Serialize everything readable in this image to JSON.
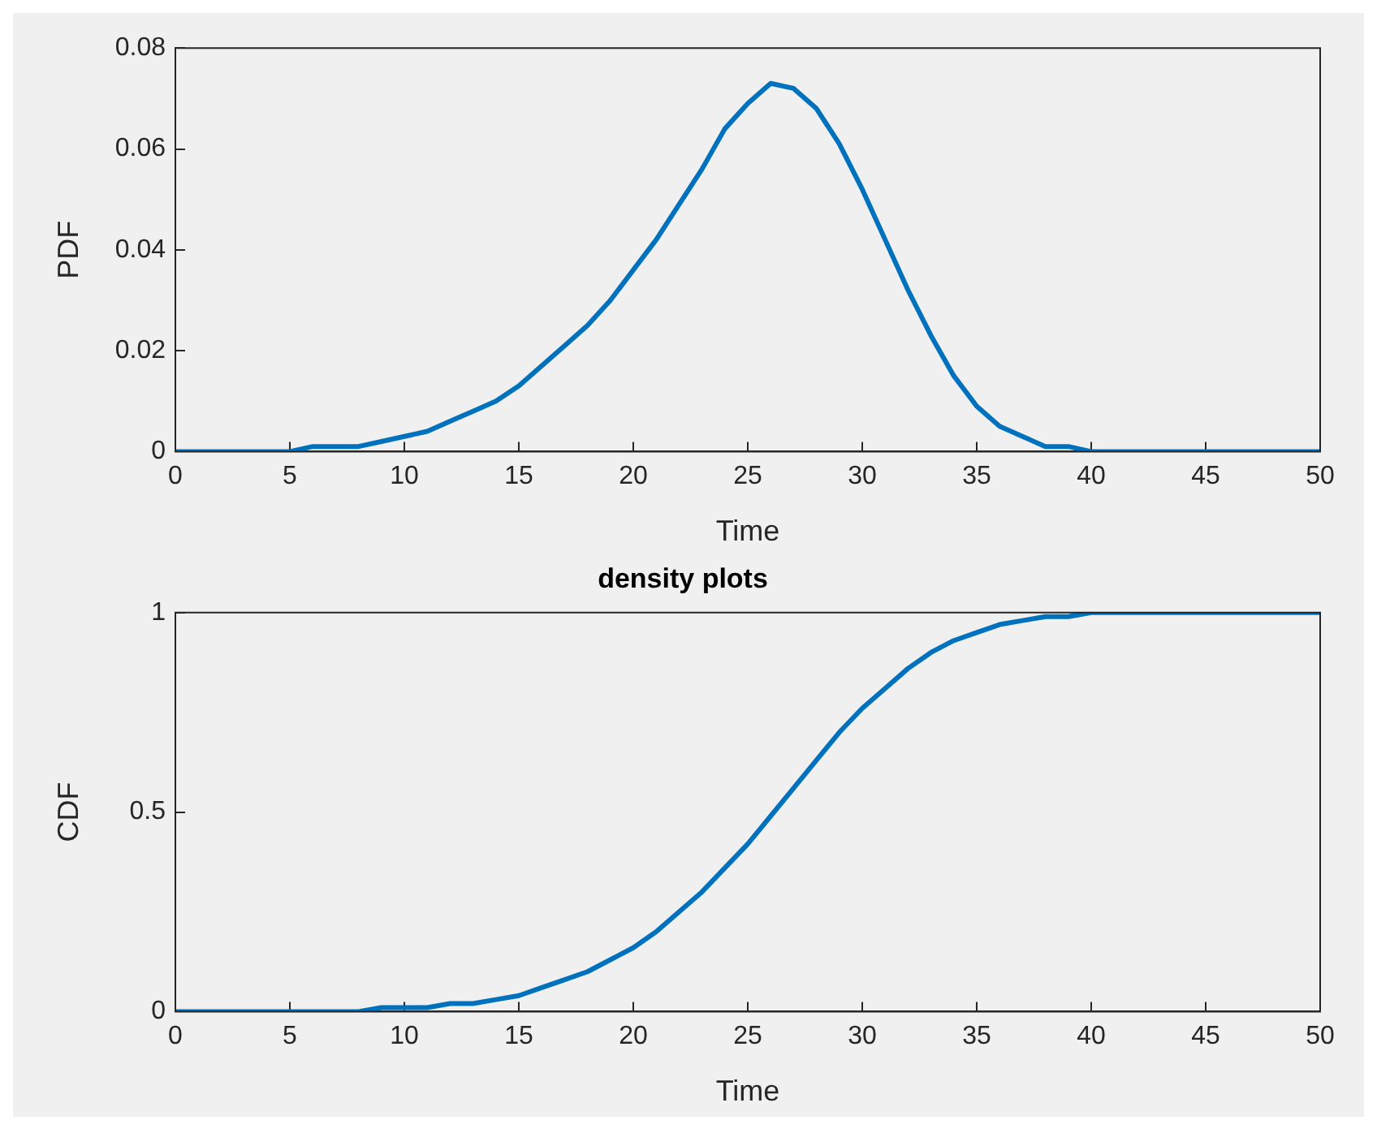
{
  "chart_data": [
    {
      "type": "line",
      "xlabel": "Time",
      "ylabel": "PDF",
      "x": [
        0,
        1,
        2,
        3,
        4,
        5,
        6,
        7,
        8,
        9,
        10,
        11,
        12,
        13,
        14,
        15,
        16,
        17,
        18,
        19,
        20,
        21,
        22,
        23,
        24,
        25,
        26,
        27,
        28,
        29,
        30,
        31,
        32,
        33,
        34,
        35,
        36,
        37,
        38,
        39,
        40,
        41,
        42,
        43,
        44,
        45,
        46,
        47,
        48,
        49,
        50
      ],
      "series": [
        {
          "color": "#0072bd",
          "values": [
            0,
            0,
            0,
            0,
            0,
            0,
            0.001,
            0.001,
            0.001,
            0.002,
            0.003,
            0.004,
            0.006,
            0.008,
            0.01,
            0.013,
            0.017,
            0.021,
            0.025,
            0.03,
            0.036,
            0.042,
            0.049,
            0.056,
            0.064,
            0.069,
            0.073,
            0.072,
            0.068,
            0.061,
            0.052,
            0.042,
            0.032,
            0.023,
            0.015,
            0.009,
            0.005,
            0.003,
            0.001,
            0.001,
            0,
            0,
            0,
            0,
            0,
            0,
            0,
            0,
            0,
            0,
            0
          ]
        }
      ],
      "xlim": [
        0,
        50
      ],
      "xticks": [
        0,
        5,
        10,
        15,
        20,
        25,
        30,
        35,
        40,
        45,
        50
      ],
      "ylim": [
        0,
        0.08
      ],
      "yticks": [
        0,
        0.02,
        0.04,
        0.06,
        0.08
      ],
      "grid": false,
      "legend": false,
      "marker": "none",
      "line_style": "solid"
    },
    {
      "type": "line",
      "title": "density plots",
      "xlabel": "Time",
      "ylabel": "CDF",
      "x": [
        0,
        1,
        2,
        3,
        4,
        5,
        6,
        7,
        8,
        9,
        10,
        11,
        12,
        13,
        14,
        15,
        16,
        17,
        18,
        19,
        20,
        21,
        22,
        23,
        24,
        25,
        26,
        27,
        28,
        29,
        30,
        31,
        32,
        33,
        34,
        35,
        36,
        37,
        38,
        39,
        40,
        41,
        42,
        43,
        44,
        45,
        46,
        47,
        48,
        49,
        50
      ],
      "series": [
        {
          "color": "#0072bd",
          "values": [
            0,
            0,
            0,
            0,
            0,
            0,
            0,
            0,
            0,
            0.01,
            0.01,
            0.01,
            0.02,
            0.02,
            0.03,
            0.04,
            0.06,
            0.08,
            0.1,
            0.13,
            0.16,
            0.2,
            0.25,
            0.3,
            0.36,
            0.42,
            0.49,
            0.56,
            0.63,
            0.7,
            0.76,
            0.81,
            0.86,
            0.9,
            0.93,
            0.95,
            0.97,
            0.98,
            0.99,
            0.99,
            1,
            1,
            1,
            1,
            1,
            1,
            1,
            1,
            1,
            1,
            1
          ]
        }
      ],
      "xlim": [
        0,
        50
      ],
      "xticks": [
        0,
        5,
        10,
        15,
        20,
        25,
        30,
        35,
        40,
        45,
        50
      ],
      "ylim": [
        0,
        1
      ],
      "yticks": [
        0,
        0.5,
        1
      ],
      "grid": false,
      "legend": false,
      "marker": "none",
      "line_style": "solid"
    }
  ]
}
